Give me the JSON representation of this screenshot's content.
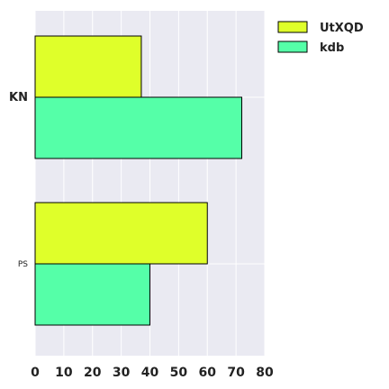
{
  "chart_data": {
    "type": "bar",
    "orientation": "horizontal",
    "title": "",
    "xlabel": "",
    "ylabel": "",
    "categories": [
      "KN",
      "PS"
    ],
    "series": [
      {
        "name": "UtXQD",
        "values": [
          37,
          60
        ],
        "color": "#dfff2a"
      },
      {
        "name": "kdb",
        "values": [
          72,
          40
        ],
        "color": "#55ffa8"
      }
    ],
    "xlim": [
      0,
      80
    ],
    "x_ticks": [
      "0",
      "10",
      "20",
      "30",
      "40",
      "50",
      "60",
      "70",
      "80"
    ],
    "grid": true,
    "legend_placement": "top-right",
    "background_color": "#eaeaf2",
    "grid_color": "#ffffff",
    "bar_edge_color": "#000000"
  }
}
